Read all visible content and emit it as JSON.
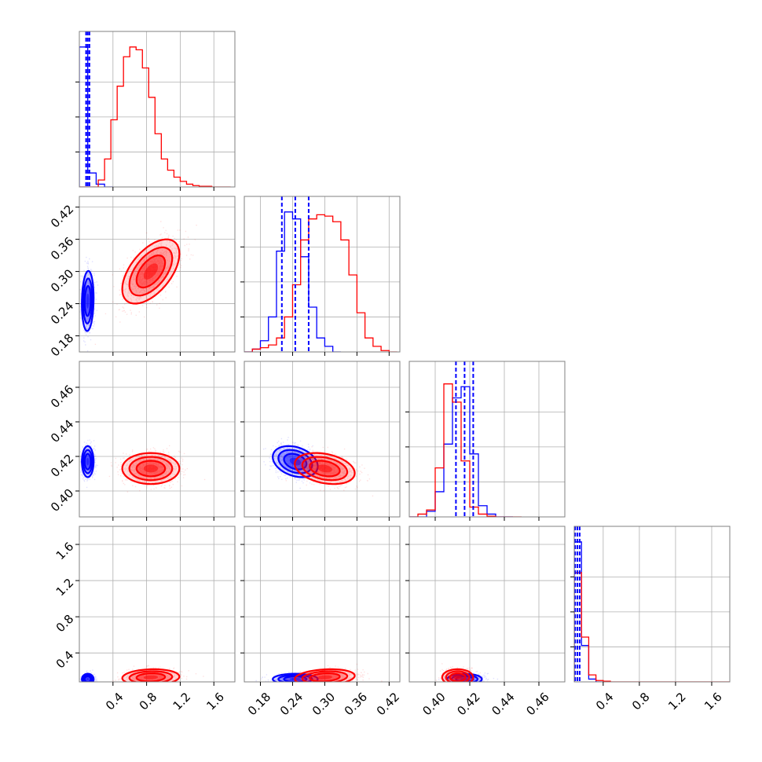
{
  "chart_data": {
    "type": "corner",
    "title": "",
    "legend": "none",
    "grid": true,
    "colors": {
      "blue": "#0000ff",
      "red": "#ff0000",
      "grid": "#b0b0b0",
      "frame": "#808080"
    },
    "parameters": [
      {
        "ticks": [
          0.4,
          0.8,
          1.2,
          1.6
        ],
        "tick_labels": [
          "0.4",
          "0.8",
          "1.2",
          "1.6"
        ],
        "range": [
          0.0,
          1.85
        ]
      },
      {
        "ticks": [
          0.18,
          0.24,
          0.3,
          0.36,
          0.42
        ],
        "tick_labels": [
          "0.18",
          "0.24",
          "0.30",
          "0.36",
          "0.42"
        ],
        "range": [
          0.15,
          0.44
        ]
      },
      {
        "ticks": [
          0.4,
          0.42,
          0.44,
          0.46
        ],
        "tick_labels": [
          "0.40",
          "0.42",
          "0.44",
          "0.46"
        ],
        "range": [
          0.385,
          0.475
        ]
      },
      {
        "ticks": [
          0.4,
          0.8,
          1.2,
          1.6
        ],
        "tick_labels": [
          "0.4",
          "0.8",
          "1.2",
          "1.6"
        ],
        "range": [
          0.08,
          1.8
        ]
      }
    ],
    "series": [
      {
        "color": "blue",
        "quantiles": [
          [
            0.08,
            0.1,
            0.12
          ],
          [
            0.22,
            0.245,
            0.27
          ],
          [
            0.412,
            0.417,
            0.422
          ],
          [
            0.09,
            0.115,
            0.14
          ]
        ],
        "centers": [
          0.1,
          0.245,
          0.417,
          0.11
        ],
        "histograms": [
          {
            "edges": [
              0.0,
              0.1,
              0.2,
              0.3,
              0.4
            ],
            "counts": [
              1.0,
              0.1,
              0.02,
              0.0
            ]
          },
          {
            "edges": [
              0.15,
              0.165,
              0.18,
              0.195,
              0.21,
              0.225,
              0.24,
              0.255,
              0.27,
              0.285,
              0.3,
              0.315,
              0.33
            ],
            "counts": [
              0.0,
              0.02,
              0.08,
              0.25,
              0.72,
              1.0,
              0.95,
              0.68,
              0.32,
              0.1,
              0.04,
              0.0
            ]
          },
          {
            "edges": [
              0.385,
              0.39,
              0.395,
              0.4,
              0.405,
              0.41,
              0.415,
              0.42,
              0.425,
              0.43,
              0.435,
              0.44,
              0.445
            ],
            "counts": [
              0.0,
              0.0,
              0.04,
              0.18,
              0.52,
              0.85,
              0.93,
              0.45,
              0.08,
              0.02,
              0.0,
              0.0
            ]
          },
          {
            "edges": [
              0.08,
              0.16,
              0.24,
              0.32,
              0.4
            ],
            "counts": [
              1.0,
              0.26,
              0.02,
              0.0
            ]
          }
        ]
      },
      {
        "color": "red",
        "quantiles": [
          [
            0.7,
            0.85,
            1.0
          ],
          [
            0.27,
            0.3,
            0.33
          ],
          [
            0.408,
            0.413,
            0.418
          ],
          [
            0.1,
            0.13,
            0.17
          ]
        ],
        "centers": [
          0.85,
          0.3,
          0.413,
          0.13
        ],
        "histograms": [
          {
            "edges": [
              0.0,
              0.075,
              0.15,
              0.225,
              0.3,
              0.375,
              0.45,
              0.525,
              0.6,
              0.675,
              0.75,
              0.825,
              0.9,
              0.975,
              1.05,
              1.125,
              1.2,
              1.275,
              1.35,
              1.425,
              1.5,
              1.575,
              1.65,
              1.725,
              1.8
            ],
            "counts": [
              0.0,
              0.0,
              0.0,
              0.05,
              0.2,
              0.48,
              0.72,
              0.93,
              1.0,
              0.98,
              0.85,
              0.64,
              0.38,
              0.2,
              0.12,
              0.07,
              0.04,
              0.02,
              0.01,
              0.005,
              0.005,
              0.0,
              0.0,
              0.0
            ]
          },
          {
            "edges": [
              0.15,
              0.165,
              0.18,
              0.195,
              0.21,
              0.225,
              0.24,
              0.255,
              0.27,
              0.285,
              0.3,
              0.315,
              0.33,
              0.345,
              0.36,
              0.375,
              0.39,
              0.405,
              0.42,
              0.435
            ],
            "counts": [
              0.0,
              0.02,
              0.03,
              0.05,
              0.1,
              0.25,
              0.48,
              0.8,
              0.95,
              0.98,
              0.97,
              0.93,
              0.8,
              0.55,
              0.28,
              0.1,
              0.04,
              0.01,
              0.0
            ]
          },
          {
            "edges": [
              0.385,
              0.39,
              0.395,
              0.4,
              0.405,
              0.41,
              0.415,
              0.42,
              0.425,
              0.43,
              0.435,
              0.44,
              0.445,
              0.45
            ],
            "counts": [
              0.0,
              0.02,
              0.05,
              0.35,
              0.95,
              0.82,
              0.4,
              0.07,
              0.02,
              0.005,
              0.0,
              0.0,
              0.0
            ]
          },
          {
            "edges": [
              0.08,
              0.16,
              0.24,
              0.32,
              0.4,
              0.48,
              0.56,
              0.64,
              0.72,
              0.8,
              0.88,
              0.96,
              1.04,
              1.12,
              1.2,
              1.28,
              1.36,
              1.44,
              1.52,
              1.6,
              1.68,
              1.76,
              1.8
            ],
            "counts": [
              0.78,
              0.32,
              0.05,
              0.01,
              0.005,
              0.0,
              0.0,
              0.0,
              0.0,
              0.0,
              0.0,
              0.0,
              0.0,
              0.0,
              0.0,
              0.0,
              0.0,
              0.0,
              0.0,
              0.0,
              0.0,
              0.0
            ]
          }
        ]
      }
    ],
    "pair_shapes": [
      {
        "pair": [
          1,
          0
        ],
        "blue": {
          "sx": 0.035,
          "sy": 0.028,
          "rho": 0.1
        },
        "red": {
          "sx": 0.17,
          "sy": 0.03,
          "rho": 0.55
        }
      },
      {
        "pair": [
          2,
          0
        ],
        "blue": {
          "sx": 0.035,
          "sy": 0.0045,
          "rho": 0.0
        },
        "red": {
          "sx": 0.17,
          "sy": 0.0045,
          "rho": 0.0
        }
      },
      {
        "pair": [
          2,
          1
        ],
        "blue": {
          "sx": 0.021,
          "sy": 0.0045,
          "rho": -0.3
        },
        "red": {
          "sx": 0.028,
          "sy": 0.0045,
          "rho": -0.3
        }
      },
      {
        "pair": [
          3,
          0
        ],
        "blue": {
          "sx": 0.035,
          "sy": 0.03,
          "rho": 0.0
        },
        "red": {
          "sx": 0.17,
          "sy": 0.045,
          "rho": 0.1
        }
      },
      {
        "pair": [
          3,
          1
        ],
        "blue": {
          "sx": 0.021,
          "sy": 0.03,
          "rho": 0.0
        },
        "red": {
          "sx": 0.028,
          "sy": 0.045,
          "rho": 0.2
        }
      },
      {
        "pair": [
          3,
          2
        ],
        "blue": {
          "sx": 0.005,
          "sy": 0.03,
          "rho": 0.0
        },
        "red": {
          "sx": 0.0045,
          "sy": 0.045,
          "rho": 0.0
        }
      }
    ]
  }
}
